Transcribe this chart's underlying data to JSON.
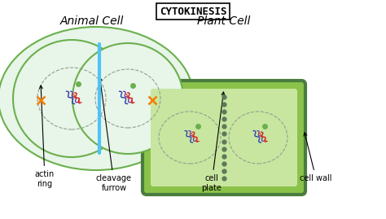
{
  "title": "CYTOKINESIS",
  "animal_label": "Animal Cell",
  "plant_label": "Plant Cell",
  "bg_color": "#ffffff",
  "cell_fill_light": "#e8f5e9",
  "cell_stroke_green": "#6ab04c",
  "cell_stroke_dark_green": "#4a7c3f",
  "plant_bg_fill": "#8bc34a",
  "plant_inner_fill": "#c8e6a0",
  "nuclear_fill": "#d4eac8",
  "nuclear_stroke": "#9ecb78",
  "cleavage_color": "#4fc3f7",
  "cell_plate_color": "#5a7a5a",
  "chromosome_colors": [
    "#c62828",
    "#1a237e",
    "#ad1457"
  ],
  "centriole_color": "#f57c00",
  "nucleolus_color": "#6ab04c",
  "annotation_color": "#000000",
  "annotation_fontsize": 7,
  "label_fontsize": 10,
  "title_fontsize": 9
}
